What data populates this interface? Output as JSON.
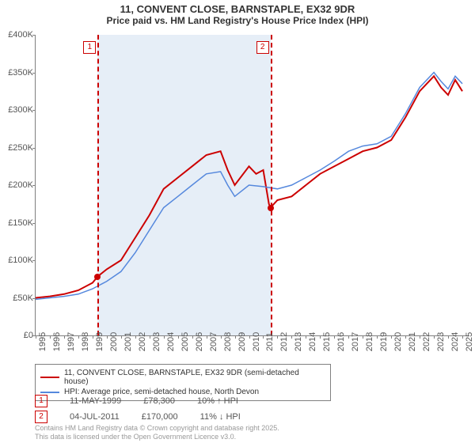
{
  "title": "11, CONVENT CLOSE, BARNSTAPLE, EX32 9DR",
  "subtitle": "Price paid vs. HM Land Registry's House Price Index (HPI)",
  "chart": {
    "type": "line",
    "background_color": "#ffffff",
    "axis_color": "#808080",
    "tick_label_color": "#555555",
    "tick_fontsize": 11,
    "xlim": [
      1995,
      2025.5
    ],
    "ylim": [
      0,
      400000
    ],
    "y_ticks": [
      0,
      50000,
      100000,
      150000,
      200000,
      250000,
      300000,
      350000,
      400000
    ],
    "y_tick_labels": [
      "£0",
      "£50K",
      "£100K",
      "£150K",
      "£200K",
      "£250K",
      "£300K",
      "£350K",
      "£400K"
    ],
    "x_ticks": [
      1995,
      1996,
      1997,
      1998,
      1999,
      2000,
      2001,
      2002,
      2003,
      2004,
      2005,
      2006,
      2007,
      2008,
      2009,
      2010,
      2011,
      2012,
      2013,
      2014,
      2015,
      2016,
      2017,
      2018,
      2019,
      2020,
      2021,
      2022,
      2023,
      2024,
      2025
    ],
    "shaded_band": {
      "x_start": 1999.36,
      "x_end": 2011.51,
      "color": "#e6eef7"
    },
    "series": [
      {
        "name": "property",
        "label": "11, CONVENT CLOSE, BARNSTAPLE, EX32 9DR (semi-detached house)",
        "color": "#cc0000",
        "line_width": 2,
        "points": [
          [
            1995,
            50000
          ],
          [
            1996,
            52000
          ],
          [
            1997,
            55000
          ],
          [
            1998,
            60000
          ],
          [
            1999,
            70000
          ],
          [
            1999.36,
            78300
          ],
          [
            2000,
            88000
          ],
          [
            2001,
            100000
          ],
          [
            2002,
            130000
          ],
          [
            2003,
            160000
          ],
          [
            2004,
            195000
          ],
          [
            2005,
            210000
          ],
          [
            2006,
            225000
          ],
          [
            2007,
            240000
          ],
          [
            2008,
            245000
          ],
          [
            2008.5,
            220000
          ],
          [
            2009,
            200000
          ],
          [
            2010,
            225000
          ],
          [
            2010.5,
            215000
          ],
          [
            2011,
            220000
          ],
          [
            2011.4,
            175000
          ],
          [
            2011.51,
            170000
          ],
          [
            2012,
            180000
          ],
          [
            2013,
            185000
          ],
          [
            2014,
            200000
          ],
          [
            2015,
            215000
          ],
          [
            2016,
            225000
          ],
          [
            2017,
            235000
          ],
          [
            2018,
            245000
          ],
          [
            2019,
            250000
          ],
          [
            2020,
            260000
          ],
          [
            2021,
            290000
          ],
          [
            2022,
            325000
          ],
          [
            2023,
            345000
          ],
          [
            2023.5,
            330000
          ],
          [
            2024,
            320000
          ],
          [
            2024.5,
            340000
          ],
          [
            2025,
            325000
          ]
        ]
      },
      {
        "name": "hpi",
        "label": "HPI: Average price, semi-detached house, North Devon",
        "color": "#5588dd",
        "line_width": 1.5,
        "points": [
          [
            1995,
            48000
          ],
          [
            1996,
            50000
          ],
          [
            1997,
            52000
          ],
          [
            1998,
            55000
          ],
          [
            1999,
            62000
          ],
          [
            2000,
            72000
          ],
          [
            2001,
            85000
          ],
          [
            2002,
            110000
          ],
          [
            2003,
            140000
          ],
          [
            2004,
            170000
          ],
          [
            2005,
            185000
          ],
          [
            2006,
            200000
          ],
          [
            2007,
            215000
          ],
          [
            2008,
            218000
          ],
          [
            2008.5,
            200000
          ],
          [
            2009,
            185000
          ],
          [
            2010,
            200000
          ],
          [
            2011,
            198000
          ],
          [
            2012,
            195000
          ],
          [
            2013,
            200000
          ],
          [
            2014,
            210000
          ],
          [
            2015,
            220000
          ],
          [
            2016,
            232000
          ],
          [
            2017,
            245000
          ],
          [
            2018,
            252000
          ],
          [
            2019,
            255000
          ],
          [
            2020,
            265000
          ],
          [
            2021,
            295000
          ],
          [
            2022,
            330000
          ],
          [
            2023,
            350000
          ],
          [
            2023.5,
            338000
          ],
          [
            2024,
            328000
          ],
          [
            2024.5,
            345000
          ],
          [
            2025,
            335000
          ]
        ]
      }
    ],
    "markers": [
      {
        "id": "1",
        "x": 1999.36,
        "color": "#cc0000",
        "point_y": 78300
      },
      {
        "id": "2",
        "x": 2011.51,
        "color": "#cc0000",
        "point_y": 170000
      }
    ]
  },
  "legend": {
    "border_color": "#808080",
    "fontsize": 10
  },
  "annotations": [
    {
      "id": "1",
      "color": "#cc0000",
      "date": "11-MAY-1999",
      "price": "£78,300",
      "delta": "10% ↑ HPI"
    },
    {
      "id": "2",
      "color": "#cc0000",
      "date": "04-JUL-2011",
      "price": "£170,000",
      "delta": "11% ↓ HPI"
    }
  ],
  "attribution": {
    "line1": "Contains HM Land Registry data © Crown copyright and database right 2025.",
    "line2": "This data is licensed under the Open Government Licence v3.0."
  }
}
